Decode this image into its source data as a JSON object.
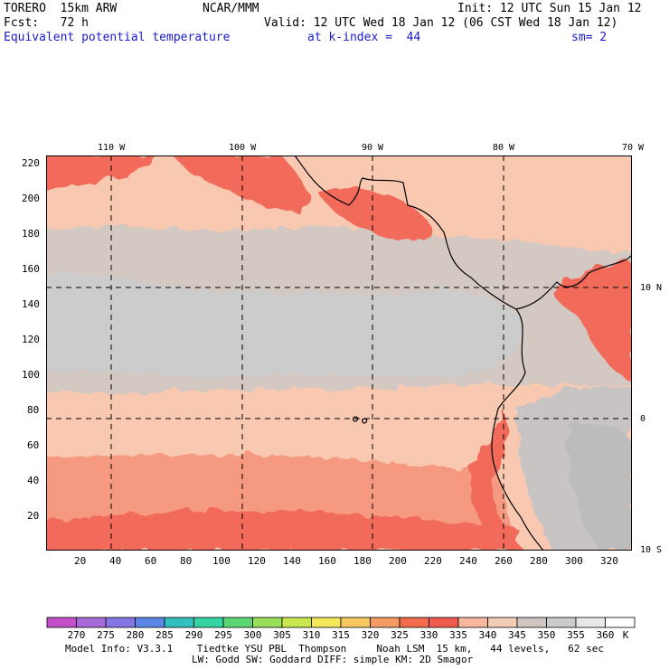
{
  "header": {
    "model": "TORERO  15km ARW",
    "org": "NCAR/MMM",
    "init": "Init: 12 UTC Sun 15 Jan 12",
    "fcst": "Fcst:   72 h",
    "valid": "Valid: 12 UTC Wed 18 Jan 12 (06 CST Wed 18 Jan 12)",
    "field": "Equivalent potential temperature",
    "level": "at k-index =  44",
    "smooth": "sm= 2"
  },
  "map": {
    "lon_labels": [
      "110 W",
      "100 W",
      "90 W",
      "80 W",
      "70 W"
    ],
    "lat_labels": [
      "10 N",
      "0",
      "10 S"
    ],
    "y_ticks": [
      "220",
      "200",
      "180",
      "160",
      "140",
      "120",
      "100",
      "80",
      "60",
      "40",
      "20"
    ],
    "x_ticks": [
      "20",
      "40",
      "60",
      "80",
      "100",
      "120",
      "140",
      "160",
      "180",
      "200",
      "220",
      "240",
      "260",
      "280",
      "300",
      "320"
    ],
    "grid_x_range": [
      0,
      330
    ],
    "grid_y_range": [
      0,
      222
    ]
  },
  "colorbar": {
    "unit": "K",
    "labels": [
      "270",
      "275",
      "280",
      "285",
      "290",
      "295",
      "300",
      "305",
      "310",
      "315",
      "320",
      "325",
      "330",
      "335",
      "340",
      "345",
      "350",
      "355",
      "360"
    ],
    "colors": [
      "#c24fc9",
      "#a66bd6",
      "#8576e6",
      "#5b86e8",
      "#33bfbf",
      "#33d6a3",
      "#5fd676",
      "#98e05a",
      "#c9e84f",
      "#f2e85a",
      "#f7c860",
      "#f59a62",
      "#f26b4d",
      "#f25a50",
      "#f8b89e",
      "#f1cdb5",
      "#cfc6c2",
      "#cccccc",
      "#e8e8e8",
      "#ffffff"
    ]
  },
  "footer": {
    "line1": "Model Info: V3.3.1    Tiedtke YSU PBL  Thompson     Noah LSM  15 km,   44 levels,   62 sec",
    "line2": "LW: Godd SW: Goddard DIFF: simple KM: 2D Smagor"
  }
}
